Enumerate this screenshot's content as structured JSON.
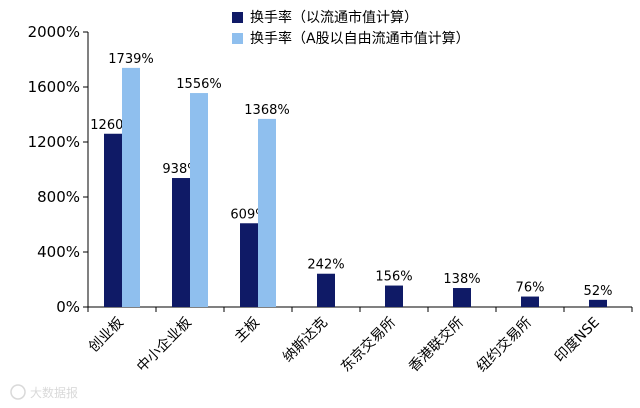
{
  "chart_data": {
    "type": "bar",
    "categories": [
      "创业板",
      "中小企业板",
      "主板",
      "纳斯达克",
      "东京交易所",
      "香港联交所",
      "纽约交易所",
      "印度NSE"
    ],
    "series": [
      {
        "name": "换手率（以流通市值计算）",
        "color": "#0f1a66",
        "values": [
          1260,
          938,
          609,
          242,
          156,
          138,
          76,
          52
        ],
        "labels": [
          "1260%",
          "938%",
          "609%",
          "242%",
          "156%",
          "138%",
          "76%",
          "52%"
        ]
      },
      {
        "name": "换手率（A股以自由流通市值计算）",
        "color": "#8fbfee",
        "values": [
          1739,
          1556,
          1368,
          null,
          null,
          null,
          null,
          null
        ],
        "labels": [
          "1739%",
          "1556%",
          "1368%",
          null,
          null,
          null,
          null,
          null
        ]
      }
    ],
    "ylim": [
      0,
      2000
    ],
    "yticks": [
      0,
      400,
      800,
      1200,
      1600,
      2000
    ],
    "ytick_labels": [
      "0%",
      "400%",
      "800%",
      "1200%",
      "1600%",
      "2000%"
    ],
    "grid": false,
    "legend": "top-center",
    "title": "",
    "xlabel": "",
    "ylabel": ""
  },
  "watermark": "大数据报"
}
